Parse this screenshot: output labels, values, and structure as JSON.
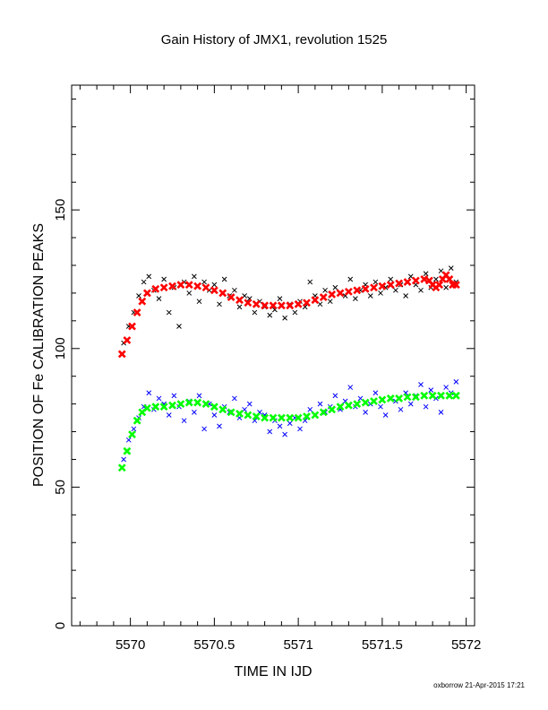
{
  "chart_data": {
    "type": "scatter",
    "title": "Gain History of JMX1, revolution 1525",
    "xlabel": "TIME IN IJD",
    "ylabel": "POSITION OF Fe CALIBRATION PEAKS",
    "xlim": [
      5569.65,
      5572.05
    ],
    "ylim": [
      0,
      195
    ],
    "x_ticks": [
      5570,
      5570.5,
      5571,
      5571.5,
      5572
    ],
    "x_tick_labels": [
      "5570",
      "5570.5",
      "5571",
      "5571.5",
      "5572"
    ],
    "y_ticks": [
      0,
      50,
      100,
      150
    ],
    "y_tick_labels": [
      "0",
      "50",
      "100",
      "150"
    ],
    "grid": false,
    "series": [
      {
        "role": "raw-upper",
        "color": "#000000",
        "marker": "x",
        "x": [
          5569.96,
          5569.99,
          5570.02,
          5570.05,
          5570.08,
          5570.11,
          5570.14,
          5570.17,
          5570.2,
          5570.23,
          5570.26,
          5570.29,
          5570.32,
          5570.35,
          5570.38,
          5570.41,
          5570.44,
          5570.47,
          5570.5,
          5570.53,
          5570.56,
          5570.59,
          5570.62,
          5570.65,
          5570.68,
          5570.71,
          5570.74,
          5570.77,
          5570.8,
          5570.83,
          5570.86,
          5570.89,
          5570.92,
          5570.95,
          5570.98,
          5571.01,
          5571.04,
          5571.07,
          5571.1,
          5571.13,
          5571.16,
          5571.19,
          5571.22,
          5571.25,
          5571.28,
          5571.31,
          5571.34,
          5571.37,
          5571.4,
          5571.43,
          5571.46,
          5571.49,
          5571.52,
          5571.55,
          5571.58,
          5571.61,
          5571.64,
          5571.67,
          5571.7,
          5571.73,
          5571.76,
          5571.79,
          5571.82,
          5571.85,
          5571.88,
          5571.91,
          5571.94
        ],
        "values": [
          102,
          108,
          113,
          119,
          124,
          126,
          121,
          118,
          125,
          113,
          122,
          108,
          124,
          120,
          126,
          117,
          124,
          121,
          123,
          116,
          125,
          119,
          121,
          115,
          119,
          118,
          113,
          117,
          115,
          112,
          114,
          118,
          111,
          116,
          113,
          117,
          115,
          124,
          119,
          116,
          121,
          117,
          122,
          120,
          119,
          125,
          118,
          121,
          123,
          119,
          124,
          120,
          122,
          125,
          121,
          123,
          119,
          126,
          123,
          121,
          127,
          122,
          125,
          128,
          122,
          129,
          124
        ]
      },
      {
        "role": "fit-upper",
        "color": "#ff0000",
        "marker": "x",
        "x": [
          5569.95,
          5569.98,
          5570.01,
          5570.04,
          5570.07,
          5570.1,
          5570.15,
          5570.2,
          5570.25,
          5570.3,
          5570.35,
          5570.4,
          5570.45,
          5570.5,
          5570.55,
          5570.6,
          5570.65,
          5570.7,
          5570.75,
          5570.8,
          5570.85,
          5570.9,
          5570.95,
          5571.0,
          5571.05,
          5571.1,
          5571.15,
          5571.2,
          5571.25,
          5571.3,
          5571.35,
          5571.4,
          5571.45,
          5571.5,
          5571.55,
          5571.6,
          5571.65,
          5571.7,
          5571.75,
          5571.78,
          5571.8,
          5571.82,
          5571.84,
          5571.86,
          5571.88,
          5571.9,
          5571.92,
          5571.94
        ],
        "values": [
          98,
          103,
          108,
          113,
          117,
          120,
          121.5,
          122,
          122.5,
          123,
          123,
          122.5,
          122,
          121,
          120,
          118.5,
          117.5,
          116.5,
          116,
          115.5,
          115.5,
          115.5,
          115.5,
          116,
          116.5,
          117.5,
          118.5,
          119.5,
          120,
          120.5,
          121,
          121.5,
          122,
          122.5,
          123,
          123.5,
          124,
          124.5,
          125,
          124.5,
          123,
          122,
          123,
          125,
          126.5,
          125,
          123,
          123
        ]
      },
      {
        "role": "raw-lower",
        "color": "#0000ff",
        "marker": "x",
        "x": [
          5569.96,
          5569.99,
          5570.02,
          5570.05,
          5570.08,
          5570.11,
          5570.14,
          5570.17,
          5570.2,
          5570.23,
          5570.26,
          5570.29,
          5570.32,
          5570.35,
          5570.38,
          5570.41,
          5570.44,
          5570.47,
          5570.5,
          5570.53,
          5570.56,
          5570.59,
          5570.62,
          5570.65,
          5570.68,
          5570.71,
          5570.74,
          5570.77,
          5570.8,
          5570.83,
          5570.86,
          5570.89,
          5570.92,
          5570.95,
          5570.98,
          5571.01,
          5571.04,
          5571.07,
          5571.1,
          5571.13,
          5571.16,
          5571.19,
          5571.22,
          5571.25,
          5571.28,
          5571.31,
          5571.34,
          5571.37,
          5571.4,
          5571.43,
          5571.46,
          5571.49,
          5571.52,
          5571.55,
          5571.58,
          5571.61,
          5571.64,
          5571.67,
          5571.7,
          5571.73,
          5571.76,
          5571.79,
          5571.82,
          5571.85,
          5571.88,
          5571.91,
          5571.94
        ],
        "values": [
          60,
          67,
          71,
          75,
          79,
          84,
          78,
          82,
          80,
          76,
          83,
          79,
          74,
          81,
          77,
          83,
          71,
          80,
          76,
          72,
          79,
          77,
          82,
          75,
          78,
          80,
          74,
          77,
          76,
          70,
          74,
          72,
          69,
          73,
          75,
          71,
          74,
          78,
          76,
          80,
          77,
          79,
          83,
          78,
          81,
          86,
          79,
          82,
          77,
          80,
          84,
          79,
          76,
          82,
          81,
          78,
          84,
          80,
          83,
          87,
          79,
          85,
          82,
          77,
          86,
          84,
          88
        ]
      },
      {
        "role": "fit-lower",
        "color": "#00ff00",
        "marker": "x",
        "x": [
          5569.95,
          5569.98,
          5570.01,
          5570.04,
          5570.07,
          5570.1,
          5570.15,
          5570.2,
          5570.25,
          5570.3,
          5570.35,
          5570.4,
          5570.45,
          5570.5,
          5570.55,
          5570.6,
          5570.65,
          5570.7,
          5570.75,
          5570.8,
          5570.85,
          5570.9,
          5570.95,
          5571.0,
          5571.05,
          5571.1,
          5571.15,
          5571.2,
          5571.25,
          5571.3,
          5571.35,
          5571.4,
          5571.45,
          5571.5,
          5571.55,
          5571.6,
          5571.65,
          5571.7,
          5571.75,
          5571.8,
          5571.85,
          5571.9,
          5571.94
        ],
        "values": [
          57,
          63,
          69,
          74,
          77,
          78.5,
          79,
          79,
          79.5,
          80,
          80.5,
          80.5,
          80,
          79,
          78,
          77,
          76.5,
          76,
          75.5,
          75,
          75,
          75,
          75,
          75,
          75.5,
          76,
          77,
          78,
          79,
          79.5,
          80,
          80.5,
          81,
          81.5,
          82,
          82,
          82.5,
          82.5,
          83,
          83,
          83,
          83,
          83
        ]
      }
    ],
    "footer": "oxborrow 21-Apr-2015 17:21"
  }
}
